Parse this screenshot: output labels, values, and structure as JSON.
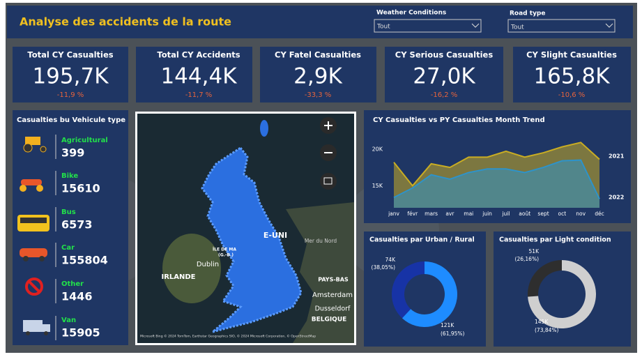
{
  "header": {
    "title": "Analyse des accidents de la route"
  },
  "filters": [
    {
      "label": "Weather Conditions",
      "value": "Tout"
    },
    {
      "label": "Road type",
      "value": "Tout"
    }
  ],
  "kpis": [
    {
      "title": "Total CY Casualties",
      "value": "195,7K",
      "change": "-11,9 %"
    },
    {
      "title": "Total CY Accidents",
      "value": "144,4K",
      "change": "-11,7 %"
    },
    {
      "title": "CY Fatel Casualties",
      "value": "2,9K",
      "change": "-33,3 %"
    },
    {
      "title": "CY Serious Casualties",
      "value": "27,0K",
      "change": "-16,2 %"
    },
    {
      "title": "CY Slight Casualties",
      "value": "165,8K",
      "change": "-10,6 %"
    }
  ],
  "vehicles": {
    "title": "Casualties bu Vehicule type",
    "items": [
      {
        "name": "Agricultural",
        "value": 399
      },
      {
        "name": "Bike",
        "value": 15610
      },
      {
        "name": "Bus",
        "value": 6573
      },
      {
        "name": "Car",
        "value": 155804
      },
      {
        "name": "Other",
        "value": 1446
      },
      {
        "name": "Van",
        "value": 15905
      }
    ]
  },
  "map": {
    "labels": [
      "E-UNI",
      "Mer du Nord",
      "IRLANDE",
      "Dublin",
      "ÎLE DE MA",
      "(G.-B.)",
      "PAYS-BAS",
      "Amsterdam",
      "Dusseldorf",
      "BELGIQUE"
    ],
    "attribution": "Microsoft Bing  © 2024 TomTom, Earthstar Geographics SIO, © 2024 Microsoft Corporation, © OpenStreetMap"
  },
  "chart_data": [
    {
      "type": "line",
      "title": "CY Casualties vs PY Casualties Month Trend",
      "categories": [
        "janv",
        "févr",
        "mars",
        "avr",
        "mai",
        "juin",
        "juil",
        "août",
        "sept",
        "oct",
        "nov",
        "déc"
      ],
      "series": [
        {
          "name": "2021",
          "color": "#c9ad23",
          "values": [
            18200,
            15000,
            18000,
            17500,
            18900,
            18900,
            19700,
            18900,
            19500,
            20300,
            20900,
            18600
          ]
        },
        {
          "name": "2022",
          "color": "#2e93c9",
          "values": [
            13400,
            14700,
            16500,
            15900,
            16800,
            17300,
            17300,
            16800,
            17500,
            18400,
            18500,
            13200
          ]
        }
      ],
      "ylim": [
        12000,
        21500
      ],
      "yticks": [
        {
          "value": 15000,
          "label": "15K"
        },
        {
          "value": 20000,
          "label": "20K"
        }
      ]
    },
    {
      "type": "donut",
      "title": "Casualties par Urban / Rural",
      "values": [
        38.05,
        61.95
      ],
      "value_labels": [
        "(38,05%)",
        "(61,95%)"
      ],
      "counts": [
        74000,
        121000
      ],
      "count_labels": [
        "74K",
        "121K"
      ],
      "colors": [
        "#1733a6",
        "#1e8cff"
      ]
    },
    {
      "type": "donut",
      "title": "Casualties par Light condition",
      "values": [
        26.16,
        73.84
      ],
      "value_labels": [
        "(26,16%)",
        "(73,84%)"
      ],
      "counts": [
        51000,
        145000
      ],
      "count_labels": [
        "51K",
        "145K"
      ],
      "colors": [
        "#2e2e2e",
        "#cfcfcf"
      ]
    }
  ]
}
